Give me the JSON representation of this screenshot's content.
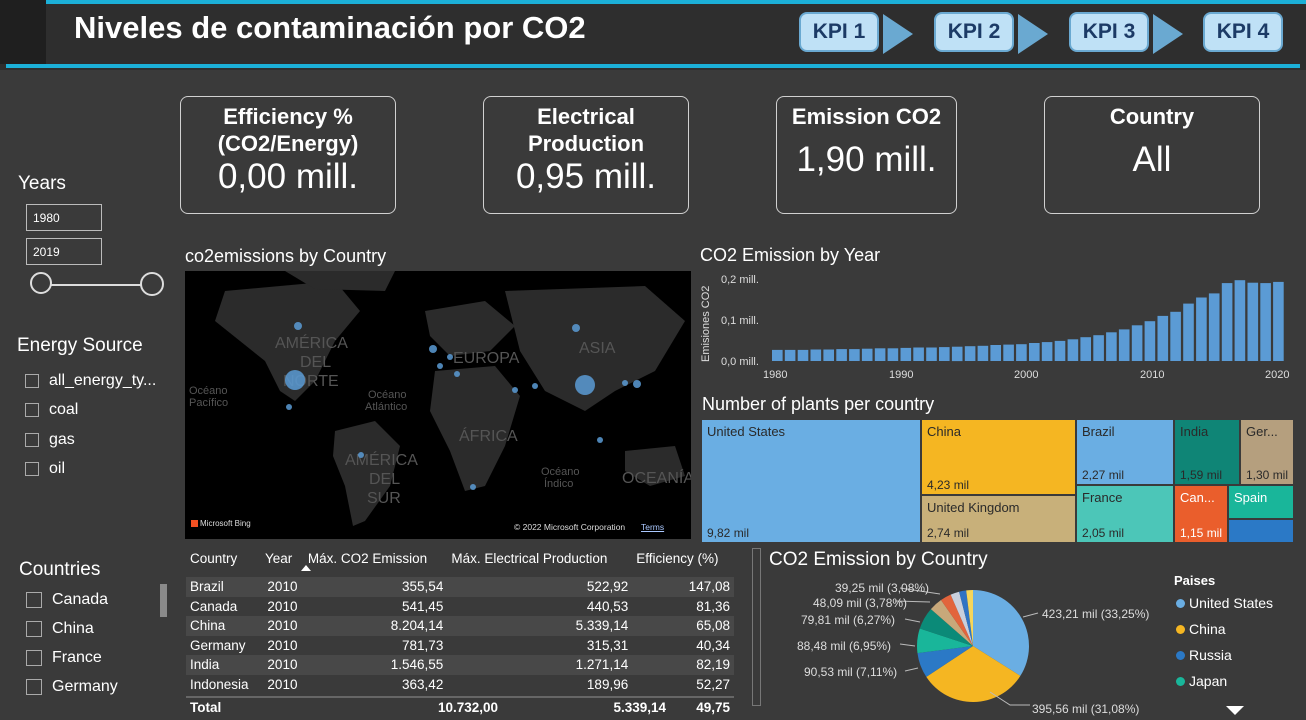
{
  "header": {
    "title": "Niveles de contaminación por CO2",
    "kpis": [
      "KPI 1",
      "KPI 2",
      "KPI 3",
      "KPI 4"
    ]
  },
  "cards": [
    {
      "label": "Efficiency %(CO2/Energy)",
      "value": "0,00 mill."
    },
    {
      "label": "Electrical Production",
      "value": "0,95 mill."
    },
    {
      "label": "Emission CO2",
      "value": "1,90 mill."
    },
    {
      "label": "Country",
      "value": "All"
    }
  ],
  "filters": {
    "years_label": "Years",
    "year_from": "1980",
    "year_to": "2019",
    "energy_label": "Energy Source",
    "energy_items": [
      "all_energy_ty...",
      "coal",
      "gas",
      "oil"
    ],
    "countries_label": "Countries",
    "country_items": [
      "Canada",
      "China",
      "France",
      "Germany"
    ]
  },
  "map": {
    "title": "co2emissions by Country",
    "labels": {
      "na": "AMÉRICA DEL NORTE",
      "eu": "EUROPA",
      "as": "ASIA",
      "af": "ÁFRICA",
      "sa": "AMÉRICA DEL SUR",
      "oc": "OCEANÍA",
      "pac": "Océano Pacífico",
      "atl": "Océano Atlántico",
      "ind": "Océano Índico"
    },
    "logo": "Microsoft Bing",
    "copyright": "© 2022 Microsoft Corporation",
    "terms": "Terms"
  },
  "bar": {
    "title": "CO2 Emission by Year",
    "ylabel": "Emisiones CO2",
    "yticks": [
      "0,2 mill.",
      "0,1 mill.",
      "0,0 mill."
    ],
    "xticks": [
      "1980",
      "1990",
      "2000",
      "2010",
      "2020"
    ]
  },
  "chart_data": [
    {
      "type": "bar",
      "title": "CO2 Emission by Year",
      "ylabel": "Emisiones CO2",
      "ylim": [
        0,
        0.2
      ],
      "categories": [
        1980,
        1981,
        1982,
        1983,
        1984,
        1985,
        1986,
        1987,
        1988,
        1989,
        1990,
        1991,
        1992,
        1993,
        1994,
        1995,
        1996,
        1997,
        1998,
        1999,
        2000,
        2001,
        2002,
        2003,
        2004,
        2005,
        2006,
        2007,
        2008,
        2009,
        2010,
        2011,
        2012,
        2013,
        2014,
        2015,
        2016,
        2017,
        2018,
        2019
      ],
      "values": [
        0.027,
        0.027,
        0.027,
        0.028,
        0.028,
        0.029,
        0.029,
        0.03,
        0.031,
        0.031,
        0.032,
        0.033,
        0.033,
        0.034,
        0.035,
        0.036,
        0.037,
        0.039,
        0.04,
        0.041,
        0.044,
        0.046,
        0.049,
        0.053,
        0.058,
        0.063,
        0.07,
        0.077,
        0.087,
        0.097,
        0.11,
        0.12,
        0.14,
        0.155,
        0.165,
        0.19,
        0.197,
        0.191,
        0.19,
        0.193
      ]
    },
    {
      "type": "treemap",
      "title": "Number of plants per country",
      "items": [
        {
          "name": "United States",
          "value": "9,82 mil"
        },
        {
          "name": "China",
          "value": "4,23 mil"
        },
        {
          "name": "United Kingdom",
          "value": "2,74 mil"
        },
        {
          "name": "Brazil",
          "value": "2,27 mil"
        },
        {
          "name": "France",
          "value": "2,05 mil"
        },
        {
          "name": "India",
          "value": "1,59 mil"
        },
        {
          "name": "Ger...",
          "value": "1,30 mil"
        },
        {
          "name": "Can...",
          "value": "1,15 mil"
        },
        {
          "name": "Spain",
          "value": ""
        }
      ]
    },
    {
      "type": "pie",
      "title": "CO2 Emission by Country",
      "legend_title": "Paises",
      "slices": [
        {
          "name": "United States",
          "label": "423,21 mil (33,25%)",
          "value": 33.25,
          "color": "#6aaee3"
        },
        {
          "name": "China",
          "label": "395,56 mil (31,08%)",
          "value": 31.08,
          "color": "#f5b622"
        },
        {
          "name": "Russia",
          "label": "90,53 mil (7,11%)",
          "value": 7.11,
          "color": "#2b79c6"
        },
        {
          "name": "Japan",
          "label": "88,48 mil (6,95%)",
          "value": 6.95,
          "color": "#19b69a"
        },
        {
          "name": "",
          "label": "79,81 mil (6,27%)",
          "value": 6.27,
          "color": "#0b8a78"
        },
        {
          "name": "",
          "label": "48,09 mil (3,78%)",
          "value": 3.78,
          "color": "#c8a87a"
        },
        {
          "name": "",
          "label": "39,25 mil (3,08%)",
          "value": 3.08,
          "color": "#e2643c"
        },
        {
          "name": "",
          "label": "",
          "value": 2.5,
          "color": "#c9cfdc"
        },
        {
          "name": "",
          "label": "",
          "value": 2.0,
          "color": "#3174c4"
        },
        {
          "name": "",
          "label": "",
          "value": 1.9,
          "color": "#f6d65a"
        }
      ]
    }
  ],
  "table": {
    "headers": [
      "Country",
      "Year",
      "Máx. CO2 Emission",
      "Máx. Electrical Production",
      "Efficiency (%)"
    ],
    "rows": [
      [
        "Brazil",
        "2010",
        "355,54",
        "522,92",
        "147,08"
      ],
      [
        "Canada",
        "2010",
        "541,45",
        "440,53",
        "81,36"
      ],
      [
        "China",
        "2010",
        "8.204,14",
        "5.339,14",
        "65,08"
      ],
      [
        "Germany",
        "2010",
        "781,73",
        "315,31",
        "40,34"
      ],
      [
        "India",
        "2010",
        "1.546,55",
        "1.271,14",
        "82,19"
      ],
      [
        "Indonesia",
        "2010",
        "363,42",
        "189,96",
        "52,27"
      ]
    ],
    "total": [
      "Total",
      "",
      "10.732,00",
      "5.339,14",
      "49,75"
    ]
  },
  "pie": {
    "title": "CO2 Emission by Country",
    "legend_title": "Paises",
    "legend": [
      "United States",
      "China",
      "Russia",
      "Japan"
    ]
  },
  "treemap_title": "Number of plants per country"
}
